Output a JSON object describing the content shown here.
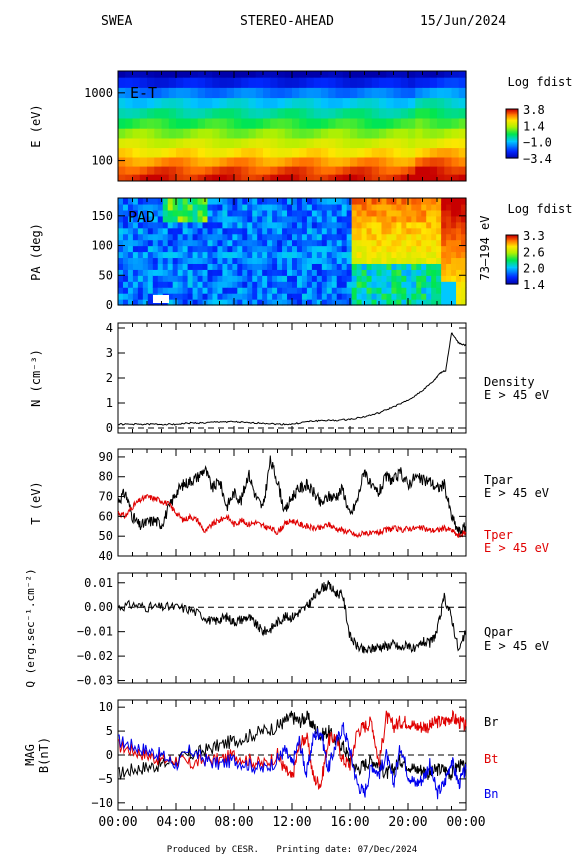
{
  "header": {
    "instrument": "SWEA",
    "spacecraft": "STEREO-AHEAD",
    "date": "15/Jun/2024"
  },
  "footer": {
    "produced": "Produced by CESR.",
    "printed": "Printing date: 07/Dec/2024"
  },
  "colors": {
    "black": "#000000",
    "red": "#e00000",
    "blue": "#0000ee"
  },
  "chart_data": [
    {
      "type": "heatmap",
      "panel": "E-T",
      "inner_label": "E-T",
      "ylabel": "E (eV)",
      "yscale": "log",
      "yticks": [
        {
          "label": "1000",
          "value": 1000
        },
        {
          "label": "100",
          "value": 100
        }
      ],
      "ylim": [
        50,
        2100
      ],
      "colorbar": {
        "title": "Log fdist",
        "ticks": [
          "3.8",
          "1.4",
          "−1.0",
          "−3.4"
        ],
        "range": [
          -3.4,
          3.8
        ]
      },
      "energy_bands_eV": [
        2000,
        1400,
        1000,
        700,
        500,
        350,
        250,
        180,
        130,
        95,
        70,
        55
      ],
      "log_fdist_bands": [
        -3.4,
        -2.6,
        -1.6,
        -0.8,
        -0.2,
        0.4,
        1.0,
        1.6,
        2.2,
        2.8,
        3.3,
        3.6
      ]
    },
    {
      "type": "heatmap",
      "panel": "PAD",
      "inner_label": "PAD",
      "ylabel": "PA (deg)",
      "right_label": "73–194 eV",
      "yticks": [
        "0",
        "50",
        "100",
        "150"
      ],
      "ylim": [
        0,
        180
      ],
      "colorbar": {
        "title": "Log fdist",
        "ticks": [
          "3.3",
          "2.6",
          "2.0",
          "1.4"
        ],
        "range": [
          1.4,
          3.3
        ]
      }
    },
    {
      "type": "line",
      "panel": "density",
      "ylabel": "N (cm⁻³)",
      "ylabel_sup": "−3",
      "ylabel_base": "N (cm",
      "ylim": [
        -0.2,
        4.2
      ],
      "yticks": [
        "0",
        "1",
        "2",
        "3",
        "4"
      ],
      "dashed_zero": true,
      "series": [
        {
          "name": "Density",
          "sub": "E > 45 eV",
          "color": "#000000",
          "x_hours": [
            0,
            1,
            2,
            3,
            4,
            5,
            6,
            7,
            8,
            9,
            10,
            11,
            12,
            13,
            14,
            15,
            16,
            17,
            18,
            19,
            20,
            21,
            21.8,
            22.2,
            22.6,
            23,
            23.5,
            24
          ],
          "y": [
            0.15,
            0.15,
            0.15,
            0.15,
            0.15,
            0.2,
            0.2,
            0.25,
            0.25,
            0.2,
            0.2,
            0.15,
            0.15,
            0.25,
            0.3,
            0.3,
            0.35,
            0.45,
            0.6,
            0.85,
            1.1,
            1.5,
            1.9,
            2.2,
            2.3,
            3.8,
            3.4,
            3.3
          ]
        }
      ]
    },
    {
      "type": "line",
      "panel": "temperature",
      "ylabel": "T (eV)",
      "ylim": [
        40,
        94
      ],
      "yticks": [
        "40",
        "50",
        "60",
        "70",
        "80",
        "90"
      ],
      "series": [
        {
          "name": "Tpar",
          "sub": "E > 45 eV",
          "color": "#000000",
          "x_hours": [
            0,
            0.5,
            1,
            1.5,
            2,
            2.5,
            3,
            3.5,
            4,
            4.5,
            5,
            5.5,
            6,
            6.5,
            7,
            7.5,
            8,
            8.5,
            9,
            9.5,
            10,
            10.5,
            11,
            11.5,
            12,
            12.5,
            13,
            13.5,
            14,
            14.5,
            15,
            15.5,
            16,
            16.5,
            17,
            17.5,
            18,
            18.5,
            19,
            19.5,
            20,
            20.5,
            21,
            21.5,
            22,
            22.5,
            23,
            23.5,
            24
          ],
          "y": [
            68,
            72,
            60,
            55,
            57,
            58,
            56,
            64,
            72,
            76,
            78,
            80,
            84,
            74,
            78,
            65,
            72,
            68,
            82,
            70,
            64,
            88,
            78,
            62,
            70,
            74,
            76,
            72,
            66,
            70,
            70,
            74,
            60,
            68,
            84,
            74,
            72,
            80,
            78,
            82,
            76,
            80,
            78,
            78,
            74,
            76,
            60,
            52,
            55
          ]
        },
        {
          "name": "Tper",
          "sub": "E > 45 eV",
          "color": "#e00000",
          "x_hours": [
            0,
            0.5,
            1,
            1.5,
            2,
            2.5,
            3,
            3.5,
            4,
            4.5,
            5,
            5.5,
            6,
            6.5,
            7,
            7.5,
            8,
            8.5,
            9,
            9.5,
            10,
            10.5,
            11,
            11.5,
            12,
            12.5,
            13,
            13.5,
            14,
            14.5,
            15,
            15.5,
            16,
            16.5,
            17,
            17.5,
            18,
            18.5,
            19,
            19.5,
            20,
            20.5,
            21,
            21.5,
            22,
            22.5,
            23,
            23.5,
            24
          ],
          "y": [
            62,
            60,
            65,
            68,
            70,
            69,
            68,
            66,
            62,
            58,
            60,
            58,
            52,
            56,
            58,
            60,
            56,
            58,
            56,
            57,
            55,
            54,
            52,
            56,
            58,
            56,
            55,
            54,
            54,
            56,
            54,
            53,
            52,
            50,
            52,
            51,
            52,
            53,
            54,
            53,
            54,
            54,
            54,
            53,
            53,
            54,
            53,
            50,
            52
          ]
        }
      ]
    },
    {
      "type": "line",
      "panel": "heat_flux",
      "ylabel": "Q (erg.sec⁻¹.cm⁻²)",
      "ylim": [
        -0.031,
        0.014
      ],
      "yticks": [
        "0.01",
        "0.00",
        "−0.01",
        "−0.02",
        "−0.03"
      ],
      "dashed_zero": true,
      "series": [
        {
          "name": "Qpar",
          "sub": "E > 45 eV",
          "color": "#000000",
          "x_hours": [
            0,
            1,
            2,
            3,
            4,
            5,
            6,
            6.5,
            7,
            7.5,
            8,
            8.5,
            9,
            9.5,
            10,
            10.5,
            11,
            11.5,
            12,
            12.5,
            13,
            13.5,
            14,
            14.5,
            15,
            15.5,
            16,
            16.5,
            17,
            17.5,
            18,
            18.5,
            19,
            19.5,
            20,
            20.5,
            21,
            21.5,
            22,
            22.5,
            23,
            23.5,
            24
          ],
          "y": [
            0.0,
            0.001,
            0.0,
            0.0,
            0.0,
            -0.001,
            -0.004,
            -0.006,
            -0.005,
            -0.004,
            -0.006,
            -0.005,
            -0.004,
            -0.007,
            -0.01,
            -0.009,
            -0.006,
            -0.004,
            -0.004,
            -0.002,
            0.0,
            0.004,
            0.008,
            0.009,
            0.006,
            0.005,
            -0.012,
            -0.016,
            -0.018,
            -0.017,
            -0.016,
            -0.016,
            -0.015,
            -0.017,
            -0.015,
            -0.018,
            -0.014,
            -0.015,
            -0.01,
            0.004,
            -0.004,
            -0.018,
            -0.01
          ]
        }
      ]
    },
    {
      "type": "line",
      "panel": "magnetic_field",
      "ylabel": "MAG B(nT)",
      "ylabel_lines": [
        "MAG",
        "B(nT)"
      ],
      "ylim": [
        -11.5,
        11.5
      ],
      "yticks": [
        "10",
        "5",
        "0",
        "−5",
        "−10"
      ],
      "dashed_zero": true,
      "xticks": [
        "00:00",
        "04:00",
        "08:00",
        "12:00",
        "16:00",
        "20:00",
        "00:00"
      ],
      "series": [
        {
          "name": "Br",
          "color": "#000000",
          "x_hours": [
            0,
            1,
            2,
            3,
            4,
            5,
            6,
            7,
            8,
            9,
            10,
            11,
            11.5,
            12,
            12.5,
            13,
            13.5,
            14,
            14.5,
            15,
            15.5,
            16,
            16.5,
            17,
            17.5,
            18,
            18.5,
            19,
            19.5,
            20,
            20.5,
            21,
            21.5,
            22,
            22.5,
            23,
            23.5,
            24
          ],
          "y": [
            -4,
            -3,
            -2.5,
            -2,
            -1,
            0,
            1,
            2,
            3,
            4,
            5,
            6,
            7,
            8,
            7,
            8,
            6,
            4,
            5,
            3,
            2,
            -1,
            -3,
            -2,
            -1,
            -2,
            -4,
            -3,
            -1,
            -2,
            -3,
            -3,
            -4,
            -3,
            -3,
            -4,
            -2,
            -3
          ]
        },
        {
          "name": "Bt",
          "color": "#e00000",
          "x_hours": [
            0,
            1,
            2,
            3,
            4,
            5,
            6,
            7,
            8,
            9,
            10,
            11,
            11.5,
            12,
            12.5,
            13,
            13.5,
            14,
            14.5,
            15,
            15.5,
            16,
            16.5,
            17,
            17.5,
            18,
            18.5,
            19,
            19.5,
            20,
            20.5,
            21,
            21.5,
            22,
            22.5,
            23,
            23.5,
            24
          ],
          "y": [
            2,
            1,
            0,
            -1,
            -1,
            -2,
            -1,
            -1,
            0,
            -1,
            -2,
            0,
            -3,
            -5,
            2,
            4,
            -5,
            -6,
            3,
            4,
            -1,
            -2,
            5,
            6,
            7,
            -2,
            8,
            6,
            7,
            7,
            6,
            6,
            6,
            7,
            7,
            8,
            7,
            6
          ]
        },
        {
          "name": "Bn",
          "color": "#0000ee",
          "x_hours": [
            0,
            1,
            2,
            3,
            4,
            5,
            6,
            7,
            8,
            9,
            10,
            11,
            11.5,
            12,
            12.5,
            13,
            13.5,
            14,
            14.5,
            15,
            15.5,
            16,
            16.5,
            17,
            17.5,
            18,
            18.5,
            19,
            19.5,
            20,
            20.5,
            21,
            21.5,
            22,
            22.5,
            23,
            23.5,
            24
          ],
          "y": [
            3,
            2,
            1,
            0,
            -2,
            1,
            -1,
            -2,
            -1,
            -2,
            -3,
            -1,
            1,
            -2,
            3,
            -4,
            4,
            5,
            -3,
            2,
            6,
            1,
            -6,
            -8,
            -2,
            -4,
            0,
            -6,
            2,
            -4,
            -6,
            -5,
            -2,
            -8,
            -6,
            -1,
            -6,
            -3
          ]
        }
      ]
    }
  ]
}
